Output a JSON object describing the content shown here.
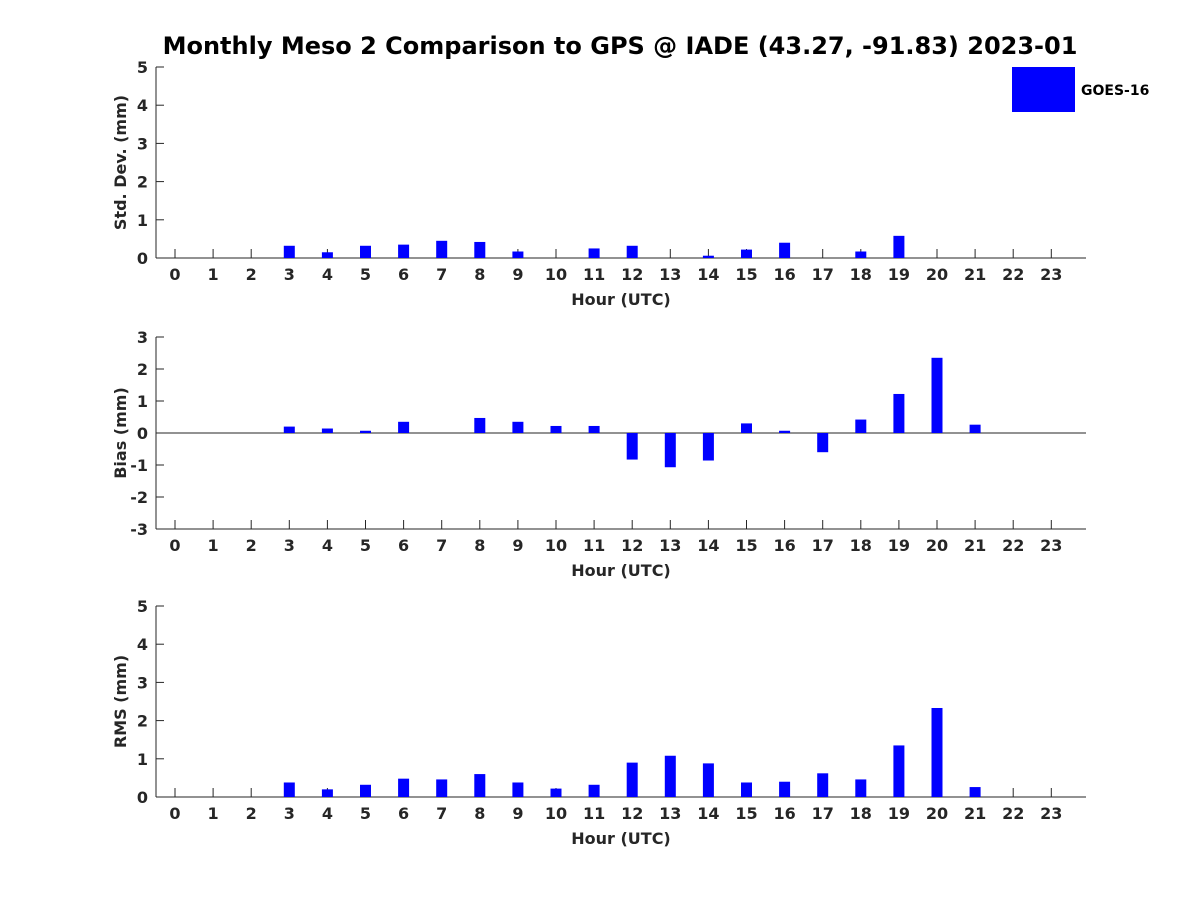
{
  "title": "Monthly Meso 2 Comparison to GPS @ IADE (43.27, -91.83) 2023-01",
  "legend": {
    "label": "GOES-16",
    "color": "#0000ff"
  },
  "chart_data": [
    {
      "type": "bar",
      "name": "std",
      "ylabel": "Std. Dev. (mm)",
      "xlabel": "Hour (UTC)",
      "ylim": [
        0,
        5
      ],
      "yticks": [
        0,
        1,
        2,
        3,
        4,
        5
      ],
      "xticks": [
        0,
        1,
        2,
        3,
        4,
        5,
        6,
        7,
        8,
        9,
        10,
        11,
        12,
        13,
        14,
        15,
        16,
        17,
        18,
        19,
        20,
        21,
        22,
        23
      ],
      "x": [
        3,
        4,
        5,
        6,
        7,
        8,
        9,
        11,
        12,
        14,
        15,
        16,
        18,
        19
      ],
      "values": [
        0.32,
        0.15,
        0.32,
        0.35,
        0.45,
        0.42,
        0.17,
        0.25,
        0.32,
        0.06,
        0.22,
        0.4,
        0.17,
        0.58
      ]
    },
    {
      "type": "bar",
      "name": "bias",
      "ylabel": "Bias (mm)",
      "xlabel": "Hour (UTC)",
      "ylim": [
        -3,
        3
      ],
      "yticks": [
        -3,
        -2,
        -1,
        0,
        1,
        2,
        3
      ],
      "zero_line": true,
      "xticks": [
        0,
        1,
        2,
        3,
        4,
        5,
        6,
        7,
        8,
        9,
        10,
        11,
        12,
        13,
        14,
        15,
        16,
        17,
        18,
        19,
        20,
        21,
        22,
        23
      ],
      "x": [
        3,
        4,
        5,
        6,
        8,
        9,
        10,
        11,
        12,
        13,
        14,
        15,
        16,
        17,
        18,
        19,
        20,
        21
      ],
      "values": [
        0.2,
        0.14,
        0.07,
        0.35,
        0.47,
        0.35,
        0.22,
        0.22,
        -0.83,
        -1.07,
        -0.86,
        0.3,
        0.07,
        -0.6,
        0.42,
        1.22,
        2.35,
        0.26
      ]
    },
    {
      "type": "bar",
      "name": "rms",
      "ylabel": "RMS (mm)",
      "xlabel": "Hour (UTC)",
      "ylim": [
        0,
        5
      ],
      "yticks": [
        0,
        1,
        2,
        3,
        4,
        5
      ],
      "xticks": [
        0,
        1,
        2,
        3,
        4,
        5,
        6,
        7,
        8,
        9,
        10,
        11,
        12,
        13,
        14,
        15,
        16,
        17,
        18,
        19,
        20,
        21,
        22,
        23
      ],
      "x": [
        3,
        4,
        5,
        6,
        7,
        8,
        9,
        10,
        11,
        12,
        13,
        14,
        15,
        16,
        17,
        18,
        19,
        20,
        21
      ],
      "values": [
        0.38,
        0.2,
        0.32,
        0.48,
        0.46,
        0.6,
        0.38,
        0.22,
        0.32,
        0.9,
        1.08,
        0.88,
        0.38,
        0.4,
        0.62,
        0.46,
        1.35,
        2.33,
        0.26
      ]
    }
  ]
}
